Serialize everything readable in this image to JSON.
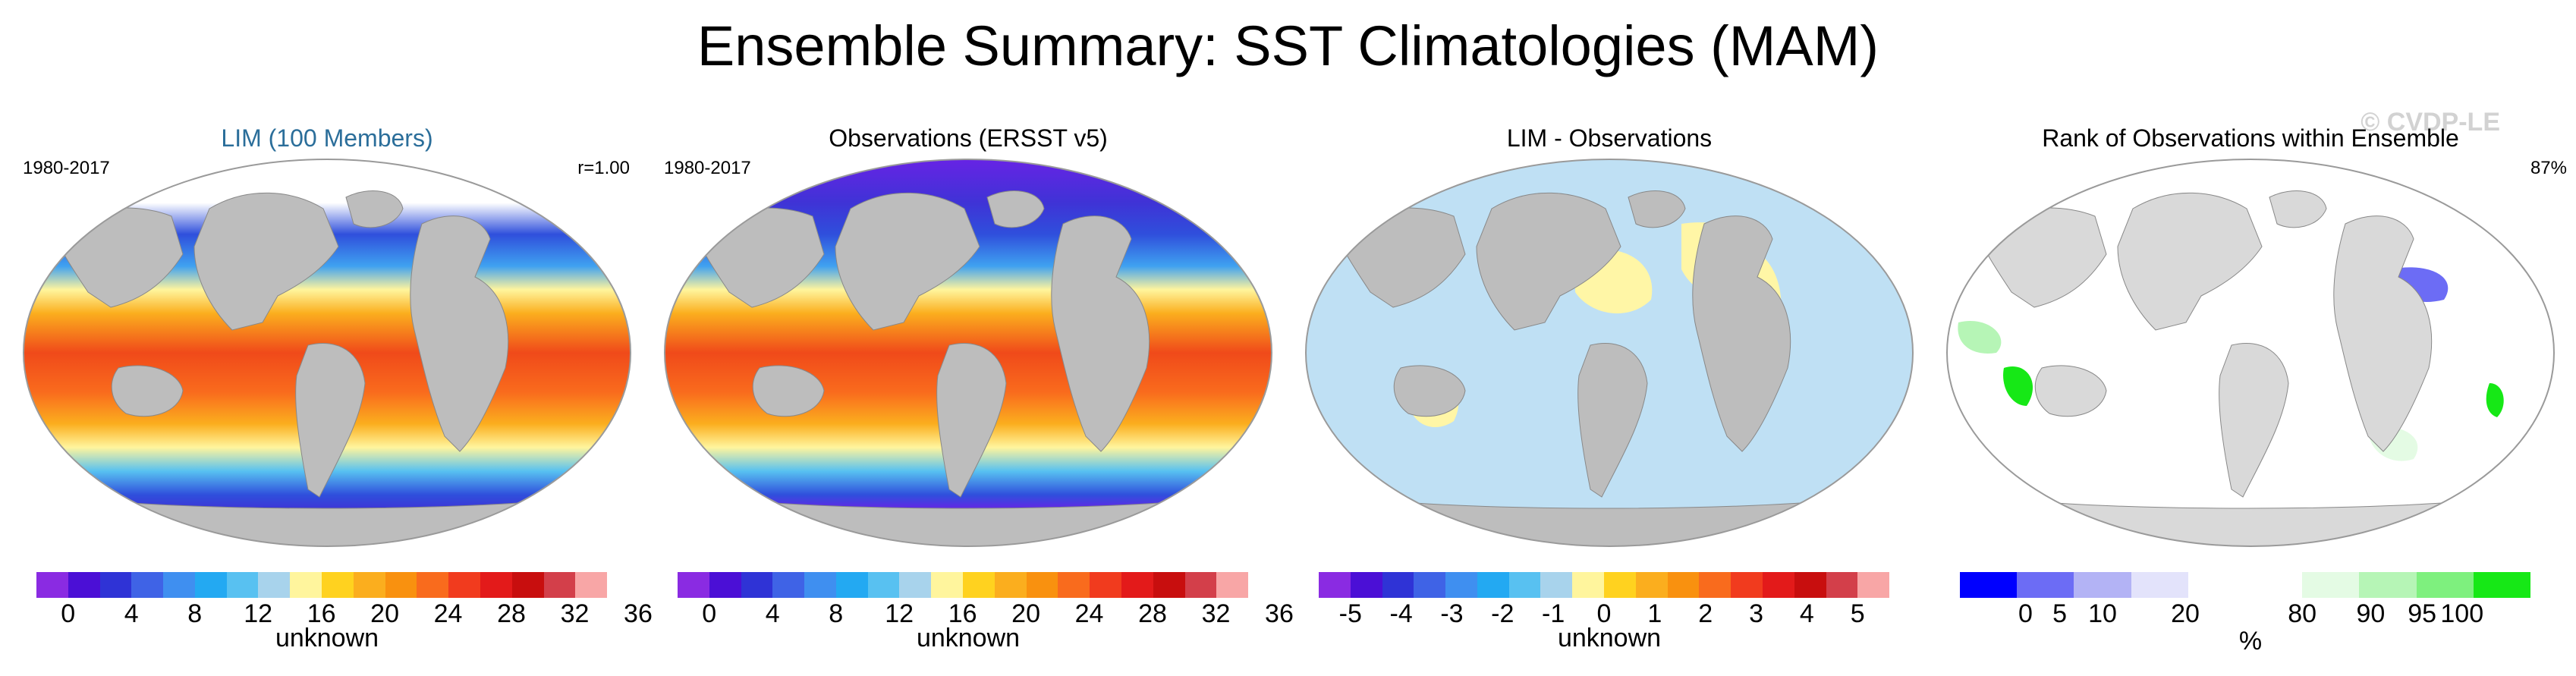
{
  "title": "Ensemble Summary: SST Climatologies (MAM)",
  "watermark": "© CVDP-LE",
  "panels": [
    {
      "title": "LIM (100 Members)",
      "title_color": "#2b6e9a",
      "left_label": "1980-2017",
      "right_label": "r=1.00",
      "map_fill": "sst",
      "colorbar": [
        "#8a2be2",
        "#4b0fd6",
        "#2f33d6",
        "#3f63e6",
        "#3f8ff0",
        "#23a9f2",
        "#58c1f1",
        "#a8d3ec",
        "#fff59d",
        "#ffd21f",
        "#fbae1e",
        "#f9910f",
        "#f96b1d",
        "#f13b1e",
        "#e31a1a",
        "#c80e0e",
        "#d33f4a",
        "#f8a6a6"
      ],
      "ticks": [
        "0",
        "4",
        "8",
        "12",
        "16",
        "20",
        "24",
        "28",
        "32",
        "36"
      ],
      "units": "unknown"
    },
    {
      "title": "Observations (ERSST v5)",
      "title_color": "#000000",
      "left_label": "1980-2017",
      "right_label": "",
      "map_fill": "sst",
      "colorbar": [
        "#8a2be2",
        "#4b0fd6",
        "#2f33d6",
        "#3f63e6",
        "#3f8ff0",
        "#23a9f2",
        "#58c1f1",
        "#a8d3ec",
        "#fff59d",
        "#ffd21f",
        "#fbae1e",
        "#f9910f",
        "#f96b1d",
        "#f13b1e",
        "#e31a1a",
        "#c80e0e",
        "#d33f4a",
        "#f8a6a6"
      ],
      "ticks": [
        "0",
        "4",
        "8",
        "12",
        "16",
        "20",
        "24",
        "28",
        "32",
        "36"
      ],
      "units": "unknown"
    },
    {
      "title": "LIM - Observations",
      "title_color": "#000000",
      "left_label": "",
      "right_label": "",
      "map_fill": "diff",
      "colorbar": [
        "#8a2be2",
        "#4b0fd6",
        "#2f33d6",
        "#3f63e6",
        "#3f8ff0",
        "#23a9f2",
        "#58c1f1",
        "#a8d3ec",
        "#fff59d",
        "#ffd21f",
        "#fbae1e",
        "#f9910f",
        "#f96b1d",
        "#f13b1e",
        "#e31a1a",
        "#c80e0e",
        "#d33f4a",
        "#f8a6a6"
      ],
      "ticks": [
        "-5",
        "-4",
        "-3",
        "-2",
        "-1",
        "0",
        "1",
        "2",
        "3",
        "4",
        "5"
      ],
      "units": "unknown"
    },
    {
      "title": "Rank of Observations within Ensemble",
      "title_color": "#000000",
      "left_label": "",
      "right_label": "87%",
      "map_fill": "rank",
      "colorbar": [
        "#0000ff",
        "#6c6cf5",
        "#b3b3f5",
        "#e3e3fb",
        "#ffffff",
        "#ffffff",
        "#e4fbe4",
        "#b6f5b6",
        "#7ef07e",
        "#16e816"
      ],
      "ticks": [
        "0",
        "5",
        "10",
        "20",
        "80",
        "90",
        "95",
        "100"
      ],
      "units": "%"
    }
  ],
  "colors": {
    "land": "#bdbdbd",
    "ocean_frame": "#e6e6e6",
    "diff_neg": "#bfe0f4",
    "diff_pos": "#fff6a6"
  }
}
